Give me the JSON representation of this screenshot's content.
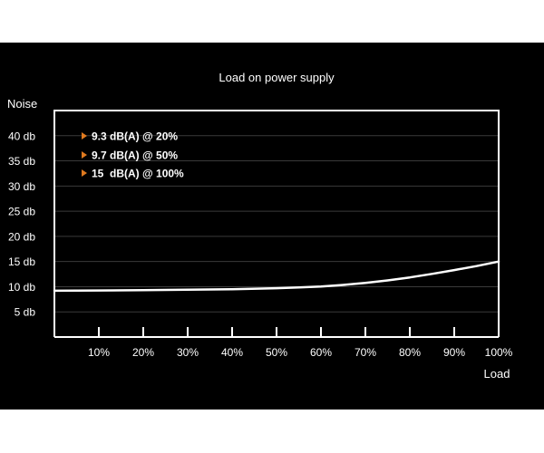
{
  "colors": {
    "background": "#000000",
    "axis": "#ffffff",
    "grid": "#3a3a3a",
    "curve": "#ffffff",
    "text": "#ffffff",
    "accent": "#e07a1f"
  },
  "chart_data": {
    "type": "line",
    "title": "Load on power supply",
    "ylabel": "Noise",
    "xlabel": "Load",
    "xlim": [
      0,
      100
    ],
    "ylim": [
      0,
      45
    ],
    "x_ticks": [
      10,
      20,
      30,
      40,
      50,
      60,
      70,
      80,
      90,
      100
    ],
    "x_tick_labels": [
      "10%",
      "20%",
      "30%",
      "40%",
      "50%",
      "60%",
      "70%",
      "80%",
      "90%",
      "100%"
    ],
    "y_ticks": [
      5,
      10,
      15,
      20,
      25,
      30,
      35,
      40
    ],
    "y_tick_labels": [
      "5 db",
      "10 db",
      "15 db",
      "20 db",
      "25 db",
      "30 db",
      "35 db",
      "40 db"
    ],
    "grid": true,
    "series": [
      {
        "x": [
          0,
          10,
          20,
          30,
          40,
          50,
          55,
          60,
          65,
          70,
          75,
          80,
          85,
          90,
          95,
          100
        ],
        "y": [
          9.2,
          9.25,
          9.3,
          9.4,
          9.5,
          9.7,
          9.85,
          10.05,
          10.35,
          10.75,
          11.25,
          11.85,
          12.55,
          13.3,
          14.1,
          15.0
        ]
      }
    ],
    "annotations": [
      "9.3 dB(A) @ 20%",
      "9.7 dB(A) @ 50%",
      "15  dB(A) @ 100%"
    ]
  }
}
